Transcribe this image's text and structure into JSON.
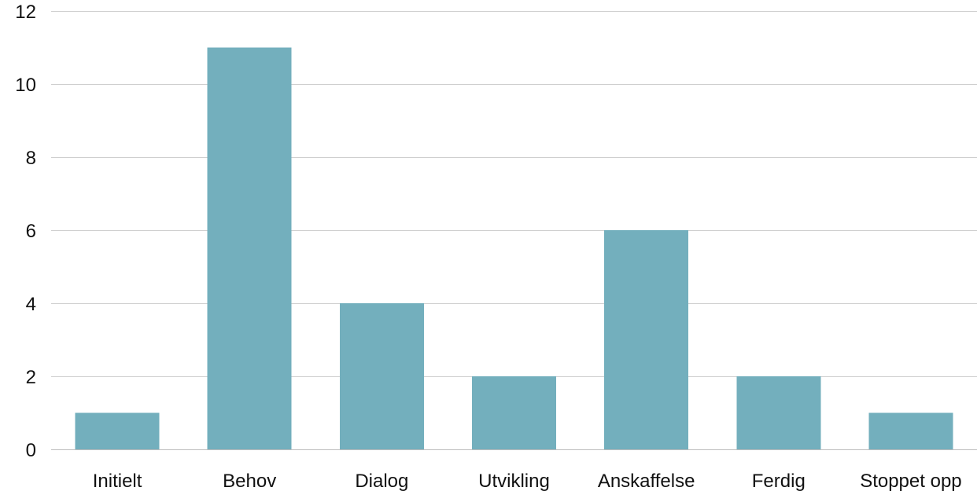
{
  "chart_data": {
    "type": "bar",
    "categories": [
      "Initielt",
      "Behov",
      "Dialog",
      "Utvikling",
      "Anskaffelse",
      "Ferdig",
      "Stoppet opp"
    ],
    "values": [
      1,
      11,
      4,
      2,
      6,
      2,
      1
    ],
    "title": "",
    "xlabel": "",
    "ylabel": "",
    "ylim": [
      0,
      12
    ],
    "yticks": [
      0,
      2,
      4,
      6,
      8,
      10,
      12
    ],
    "ytick_labels": [
      "0",
      "2",
      "4",
      "6",
      "8",
      "10",
      "12"
    ],
    "grid": true,
    "legend": "none",
    "colors": {
      "bar": "#73afbd",
      "grid": "#cfcfcf",
      "text": "#111111"
    }
  }
}
